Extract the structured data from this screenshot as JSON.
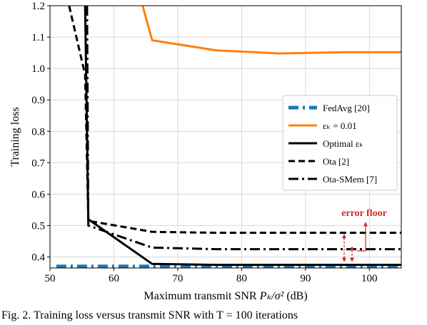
{
  "chart_data": {
    "type": "line",
    "title": "",
    "xlabel": "Maximum transmit SNR P_k/σ² (dB)",
    "xlabel_parts": {
      "text": "Maximum transmit SNR ",
      "math": "Pₖ/σ²",
      "unit": " (dB)"
    },
    "ylabel": "Training loss",
    "xlim": [
      50,
      105
    ],
    "ylim": [
      0.365,
      1.2
    ],
    "xticks": [
      "50",
      "60",
      "70",
      "80",
      "90",
      "100"
    ],
    "yticks": [
      "0.4",
      "0.5",
      "0.6",
      "0.7",
      "0.8",
      "0.9",
      "1.0",
      "1.1",
      "1.2"
    ],
    "grid": true,
    "legend": "center-right",
    "series": [
      {
        "name": "FedAvg [20]",
        "style": "dashdot-thick",
        "color": "#1f77b4",
        "x": [
          51,
          105
        ],
        "y": [
          0.37,
          0.37
        ]
      },
      {
        "name": "εₖ = 0.01",
        "style": "solid",
        "color": "#ff7f0e",
        "x": [
          64.5,
          66,
          76,
          86,
          96,
          105
        ],
        "y": [
          1.2,
          1.09,
          1.058,
          1.048,
          1.052,
          1.052
        ]
      },
      {
        "name": "Optimal εₖ",
        "style": "solid",
        "color": "#000000",
        "x": [
          55.5,
          56,
          66,
          76,
          86,
          96,
          105
        ],
        "y": [
          1.2,
          0.52,
          0.378,
          0.375,
          0.375,
          0.375,
          0.375
        ]
      },
      {
        "name": "Ota [2]",
        "style": "dashed",
        "color": "#000000",
        "x": [
          53,
          55.5,
          56,
          66,
          76,
          86,
          96,
          105
        ],
        "y": [
          1.2,
          0.98,
          0.515,
          0.48,
          0.477,
          0.477,
          0.477,
          0.477
        ]
      },
      {
        "name": "Ota-SMem [7]",
        "style": "dashdot",
        "color": "#000000",
        "x": [
          55.8,
          56,
          66,
          76,
          86,
          96,
          105
        ],
        "y": [
          1.2,
          0.5,
          0.43,
          0.425,
          0.425,
          0.425,
          0.425
        ]
      }
    ],
    "annotations": [
      {
        "text": "error floor",
        "color": "#d62728"
      }
    ]
  },
  "caption": "Fig. 2.  Training loss versus transmit SNR with T = 100 iterations"
}
